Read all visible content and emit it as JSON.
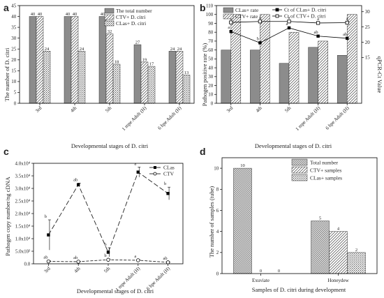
{
  "chart_data": [
    {
      "panel": "a",
      "type": "bar",
      "categories": [
        "3rd",
        "4th",
        "5th",
        "1 mpe Adult (H)",
        "6 hpe Adult (H)"
      ],
      "series": [
        {
          "name": "The total number",
          "values": [
            40,
            40,
            40,
            27,
            24
          ]
        },
        {
          "name": "CTV+ D. citri",
          "values": [
            40,
            40,
            32,
            19,
            24
          ]
        },
        {
          "name": "CLas+ D. citri",
          "values": [
            24,
            24,
            18,
            17,
            13
          ]
        }
      ],
      "xlabel": "Developmental stages of D. citri",
      "ylabel": "The number of D. citri",
      "ylim": [
        0,
        45
      ],
      "yticks": [
        0,
        5,
        10,
        15,
        20,
        25,
        30,
        35,
        40,
        45
      ]
    },
    {
      "panel": "b",
      "type": "bar",
      "categories": [
        "3rd",
        "4th",
        "5th",
        "1 mpe Adult (H)",
        "6 hpe Adult (H)"
      ],
      "series": [
        {
          "name": "CLas+ rate",
          "values": [
            60,
            60,
            45,
            63,
            54
          ]
        },
        {
          "name": "CTV+ rate",
          "values": [
            100,
            100,
            80,
            70,
            100
          ]
        }
      ],
      "line_series": [
        {
          "name": "Ct of CLas+ D. citri",
          "values": [
            23.5,
            19.8,
            24.7,
            22.0,
            21.3
          ],
          "labels": [
            "a",
            "b",
            "a",
            "ab",
            "ab"
          ]
        },
        {
          "name": "Ct of CTV+ D. citri",
          "values": [
            26.5,
            26.8,
            26.8,
            26.3,
            26.4
          ],
          "labels": [
            "a",
            "a",
            "a",
            "a",
            "a"
          ]
        }
      ],
      "xlabel": "Developmental stages of D. citri",
      "ylabel": "Pathogen positive rate (%)",
      "y2label": "qPCR-Ct Value",
      "ylim": [
        0,
        110
      ],
      "yticks": [
        0,
        10,
        20,
        30,
        40,
        50,
        60,
        70,
        80,
        90,
        100,
        110
      ],
      "y2lim": [
        0,
        32
      ],
      "y2ticks": [
        15,
        20,
        25,
        30
      ]
    },
    {
      "panel": "c",
      "type": "line",
      "categories": [
        "3rd",
        "4th",
        "5th",
        "1 mpe Adult (H)",
        "6 hpe Adult (H)"
      ],
      "series": [
        {
          "name": "CLas",
          "values": [
            11500,
            31500,
            4600,
            36500,
            28000
          ],
          "errors": [
            6000,
            600,
            1800,
            2000,
            2500
          ],
          "labels": [
            "b",
            "ab",
            "b",
            "a",
            "b"
          ]
        },
        {
          "name": "CTV",
          "values": [
            950,
            850,
            1600,
            1400,
            600
          ],
          "errors": [
            200,
            150,
            300,
            200,
            100
          ],
          "labels": [
            "ab",
            "ab",
            "b",
            "a",
            "ab"
          ]
        }
      ],
      "xlabel": "Developmental stages of D. citri",
      "ylabel": "Pathogen copy number/ng cDNA",
      "ylim": [
        0,
        40000
      ],
      "yticks": [
        "0.0",
        "5.0x10³",
        "1.0x10⁴",
        "1.5x10⁴",
        "2.0x10⁴",
        "2.5x10⁴",
        "3.0x10⁴",
        "3.5x10⁴",
        "4.0x10⁴"
      ]
    },
    {
      "panel": "d",
      "type": "bar",
      "categories": [
        "Exuviate",
        "Honeydew"
      ],
      "series": [
        {
          "name": "Total number",
          "values": [
            10,
            5
          ]
        },
        {
          "name": "CTV+ samples",
          "values": [
            0,
            4
          ]
        },
        {
          "name": "CLas+ samples",
          "values": [
            0,
            2
          ]
        }
      ],
      "xlabel": "Samples of D. citri during development",
      "ylabel": "The number of samples (tube)",
      "ylim": [
        0,
        11
      ],
      "yticks": [
        0,
        2,
        4,
        6,
        8,
        10
      ]
    }
  ]
}
